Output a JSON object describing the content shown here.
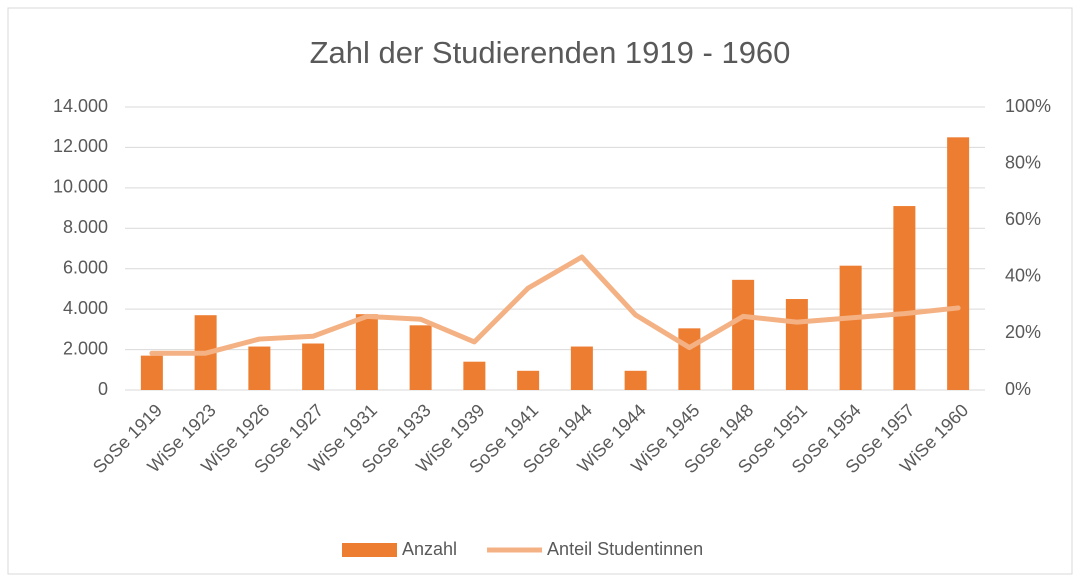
{
  "chart_data": {
    "type": "bar-line",
    "title": "Zahl der Studierenden 1919 - 1960",
    "categories": [
      "SoSe 1919",
      "WiSe 1923",
      "WiSe 1926",
      "SoSe 1927",
      "WiSe 1931",
      "SoSe 1933",
      "WiSe 1939",
      "SoSe 1941",
      "SoSe 1944",
      "WiSe 1944",
      "WiSe 1945",
      "SoSe 1948",
      "SoSe 1951",
      "SoSe 1954",
      "SoSe 1957",
      "WiSe 1960"
    ],
    "series": [
      {
        "name": "Anzahl",
        "type": "bar",
        "color": "#ed7d31",
        "values": [
          1700,
          3700,
          2150,
          2300,
          3750,
          3200,
          1400,
          950,
          2150,
          950,
          3050,
          5450,
          4500,
          6150,
          9100,
          12500
        ]
      },
      {
        "name": "Anteil Studentinnen",
        "type": "line",
        "axis": "y2",
        "color": "#f4b183",
        "values": [
          13,
          13,
          18,
          19,
          26,
          25,
          17,
          36,
          47,
          26.5,
          15,
          26,
          24,
          25.5,
          27,
          29
        ]
      }
    ],
    "ylim": [
      0,
      14000
    ],
    "yticks": [
      0,
      {
        "value": 2000,
        "label": "2.000"
      },
      {
        "value": 4000,
        "label": "4.000"
      },
      {
        "value": 6000,
        "label": "6.000"
      },
      {
        "value": 8000,
        "label": "8.000"
      },
      {
        "value": 10000,
        "label": "10.000"
      },
      {
        "value": 12000,
        "label": "12.000"
      },
      {
        "value": 14000,
        "label": "14.000"
      }
    ],
    "y2lim": [
      0,
      100
    ],
    "y2ticks": [
      {
        "value": 0,
        "label": "0%"
      },
      {
        "value": 20,
        "label": "20%"
      },
      {
        "value": 40,
        "label": "40%"
      },
      {
        "value": 60,
        "label": "60%"
      },
      {
        "value": 80,
        "label": "80%"
      },
      {
        "value": 100,
        "label": "100%"
      }
    ],
    "grid": true,
    "legend": "bottom"
  }
}
